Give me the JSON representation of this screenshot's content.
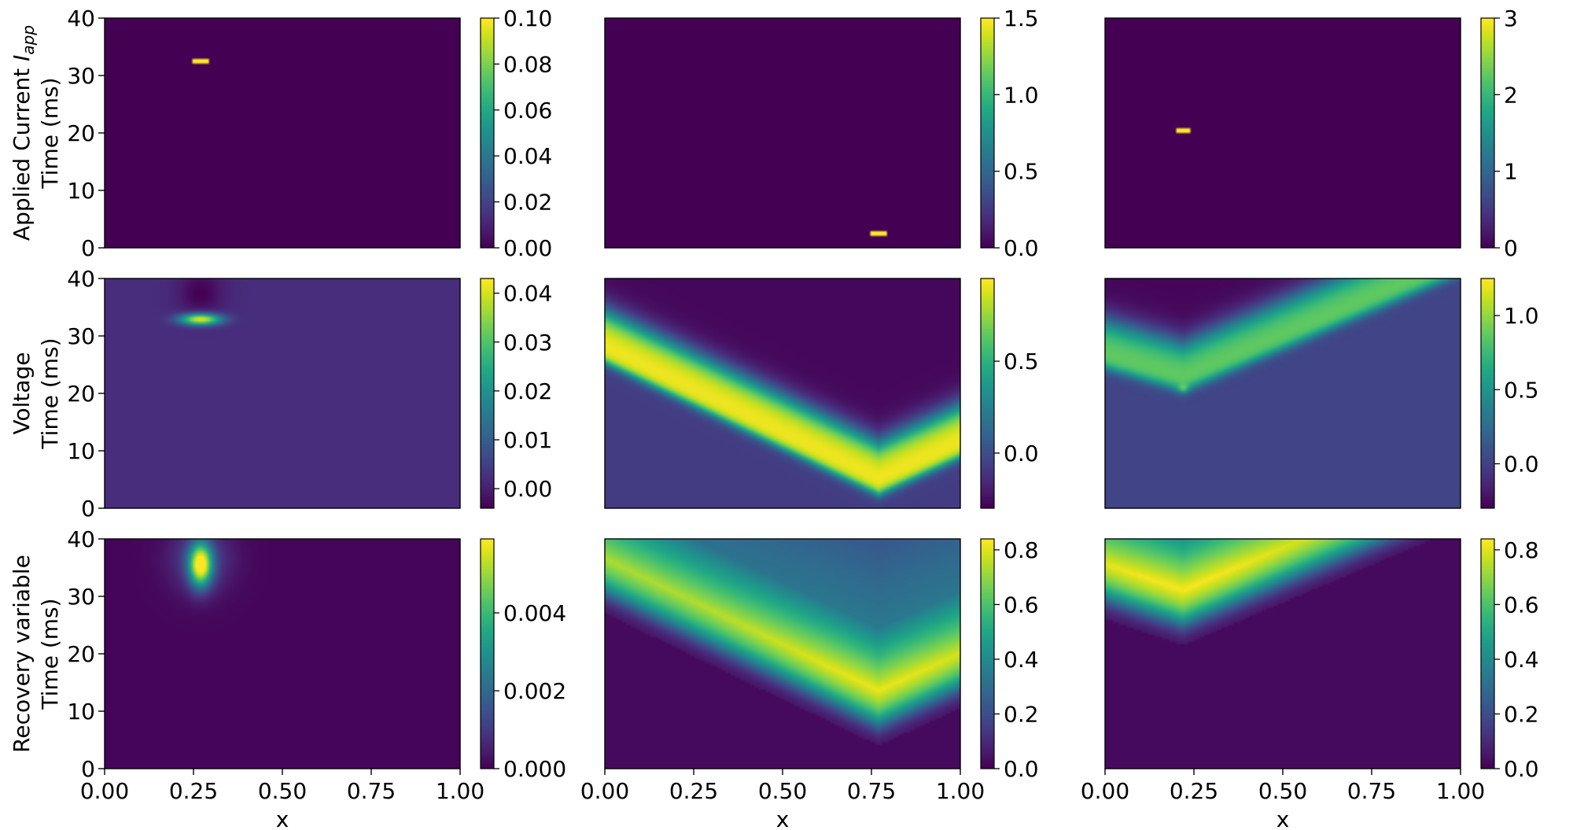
{
  "chart_data": [
    {
      "type": "heatmap",
      "id": "current-1",
      "xlim": [
        0,
        1
      ],
      "ylim": [
        0,
        40
      ],
      "xticks": [],
      "yticks": [
        "0",
        "10",
        "20",
        "30",
        "40"
      ],
      "ylabel_line1": "Applied Current",
      "ylabel_symbol": "I",
      "ylabel_subscript": "app",
      "ylabel_line2": "Time (ms)",
      "xlabel": "",
      "colorbar": {
        "range": [
          0,
          0.1
        ],
        "ticks": [
          0,
          0.02,
          0.04,
          0.06,
          0.08,
          0.1
        ],
        "tick_labels": [
          "0.00",
          "0.02",
          "0.04",
          "0.06",
          "0.08",
          "0.10"
        ]
      },
      "features": [
        {
          "kind": "stimulus",
          "x_range": [
            0.25,
            0.29
          ],
          "t_range": [
            32.0,
            33.0
          ],
          "value": 0.1
        }
      ]
    },
    {
      "type": "heatmap",
      "id": "current-2",
      "xlim": [
        0,
        1
      ],
      "ylim": [
        0,
        40
      ],
      "xticks": [],
      "yticks": [],
      "xlabel": "",
      "colorbar": {
        "range": [
          0,
          1.5
        ],
        "ticks": [
          0,
          0.5,
          1,
          1.5
        ],
        "tick_labels": [
          "0.0",
          "0.5",
          "1.0",
          "1.5"
        ]
      },
      "features": [
        {
          "kind": "stimulus",
          "x_range": [
            0.75,
            0.79
          ],
          "t_range": [
            2.0,
            3.0
          ],
          "value": 1.5
        }
      ]
    },
    {
      "type": "heatmap",
      "id": "current-3",
      "xlim": [
        0,
        1
      ],
      "ylim": [
        0,
        40
      ],
      "xticks": [],
      "yticks": [],
      "xlabel": "",
      "colorbar": {
        "range": [
          0,
          3
        ],
        "ticks": [
          0,
          1,
          2,
          3
        ],
        "tick_labels": [
          "0",
          "1",
          "2",
          "3"
        ]
      },
      "features": [
        {
          "kind": "stimulus",
          "x_range": [
            0.2,
            0.24
          ],
          "t_range": [
            20.0,
            21.0
          ],
          "value": 3
        }
      ]
    },
    {
      "type": "heatmap",
      "id": "voltage-1",
      "xlim": [
        0,
        1
      ],
      "ylim": [
        0,
        40
      ],
      "xticks": [],
      "yticks": [
        "0",
        "10",
        "20",
        "30",
        "40"
      ],
      "ylabel_line1": "Voltage",
      "ylabel_line2": "Time (ms)",
      "xlabel": "",
      "colorbar": {
        "range": [
          -0.004,
          0.043
        ],
        "ticks": [
          0,
          0.01,
          0.02,
          0.03,
          0.04
        ],
        "tick_labels": [
          "0.00",
          "0.01",
          "0.02",
          "0.03",
          "0.04"
        ]
      },
      "background": 0.002,
      "features": [
        {
          "kind": "blob",
          "x": 0.27,
          "t": 32.9,
          "sx": 0.04,
          "st": 0.7,
          "amp": 0.041
        },
        {
          "kind": "blob",
          "x": 0.27,
          "t": 37.5,
          "sx": 0.045,
          "st": 2.8,
          "amp": -0.006
        }
      ]
    },
    {
      "type": "heatmap",
      "id": "voltage-2",
      "xlim": [
        0,
        1
      ],
      "ylim": [
        0,
        40
      ],
      "xticks": [],
      "yticks": [],
      "xlabel": "",
      "colorbar": {
        "range": [
          -0.3,
          0.95
        ],
        "ticks": [
          0,
          0.5
        ],
        "tick_labels": [
          "0.0",
          "0.5"
        ]
      },
      "background": -0.08,
      "ahead_value": -0.08,
      "behind_value": -0.28,
      "peak_value": 0.95,
      "features": [
        {
          "kind": "v-wave",
          "origin_x": 0.77,
          "origin_t": 2.5,
          "arms": [
            {
              "x": 0.0,
              "t": 25.5
            },
            {
              "x": 1.0,
              "t": 9.0
            }
          ],
          "width_t": 8.5
        }
      ]
    },
    {
      "type": "heatmap",
      "id": "voltage-3",
      "xlim": [
        0,
        1
      ],
      "ylim": [
        0,
        40
      ],
      "xticks": [],
      "yticks": [],
      "xlabel": "",
      "colorbar": {
        "range": [
          -0.3,
          1.25
        ],
        "ticks": [
          0,
          0.5,
          1
        ],
        "tick_labels": [
          "0.0",
          "0.5",
          "1.0"
        ]
      },
      "background": 0.01,
      "ahead_value": 0.01,
      "behind_value": -0.28,
      "peak_value": 0.9,
      "features": [
        {
          "kind": "v-wave",
          "origin_x": 0.22,
          "origin_t": 20.5,
          "arms": [
            {
              "x": 0.0,
              "t": 24.5
            },
            {
              "x": 1.0,
              "t": 41.0
            }
          ],
          "width_t": 8.0
        },
        {
          "kind": "blob",
          "x": 0.22,
          "t": 20.8,
          "sx": 0.012,
          "st": 0.45,
          "amp": 0.32
        }
      ]
    },
    {
      "type": "heatmap",
      "id": "recovery-1",
      "xlim": [
        0,
        1
      ],
      "ylim": [
        0,
        40
      ],
      "xticks": [
        "0.00",
        "0.25",
        "0.50",
        "0.75",
        "1.00"
      ],
      "yticks": [
        "0",
        "10",
        "20",
        "30",
        "40"
      ],
      "ylabel_line1": "Recovery variable",
      "ylabel_line2": "Time (ms)",
      "xlabel": "x",
      "colorbar": {
        "range": [
          0,
          0.0059
        ],
        "ticks": [
          0,
          0.002,
          0.004
        ],
        "tick_labels": [
          "0.000",
          "0.002",
          "0.004"
        ]
      },
      "background": 8e-05,
      "features": [
        {
          "kind": "blob",
          "x": 0.27,
          "t": 35.5,
          "sx": 0.022,
          "st": 2.6,
          "amp": 0.0056
        },
        {
          "kind": "blob",
          "x": 0.27,
          "t": 36.5,
          "sx": 0.06,
          "st": 4.0,
          "amp": 0.0012
        }
      ]
    },
    {
      "type": "heatmap",
      "id": "recovery-2",
      "xlim": [
        0,
        1
      ],
      "ylim": [
        0,
        40
      ],
      "xticks": [
        "0.00",
        "0.25",
        "0.50",
        "0.75",
        "1.00"
      ],
      "yticks": [],
      "xlabel": "x",
      "colorbar": {
        "range": [
          0,
          0.84
        ],
        "ticks": [
          0,
          0.2,
          0.4,
          0.6,
          0.8
        ],
        "tick_labels": [
          "0.0",
          "0.2",
          "0.4",
          "0.6",
          "0.8"
        ]
      },
      "background": 0.02,
      "peak_value": 0.82,
      "features": [
        {
          "kind": "v-recovery",
          "origin_x": 0.77,
          "origin_t": 4.0,
          "arms": [
            {
              "x": 0.0,
              "t": 27.0
            },
            {
              "x": 1.0,
              "t": 10.5
            }
          ],
          "peak_offset_t": 9.5,
          "rise_t": 3.5,
          "decay_t": 11.0,
          "far_value": 0.34
        }
      ]
    },
    {
      "type": "heatmap",
      "id": "recovery-3",
      "xlim": [
        0,
        1
      ],
      "ylim": [
        0,
        40
      ],
      "xticks": [
        "0.00",
        "0.25",
        "0.50",
        "0.75",
        "1.00"
      ],
      "yticks": [],
      "xlabel": "x",
      "colorbar": {
        "range": [
          0,
          0.84
        ],
        "ticks": [
          0,
          0.2,
          0.4,
          0.6,
          0.8
        ],
        "tick_labels": [
          "0.0",
          "0.2",
          "0.4",
          "0.6",
          "0.8"
        ]
      },
      "background": 0.02,
      "peak_value": 0.84,
      "features": [
        {
          "kind": "v-recovery",
          "origin_x": 0.22,
          "origin_t": 21.5,
          "arms": [
            {
              "x": 0.0,
              "t": 26.0
            },
            {
              "x": 1.0,
              "t": 42.0
            }
          ],
          "peak_offset_t": 9.5,
          "rise_t": 3.5,
          "decay_t": 11.0,
          "far_value": 0.34
        }
      ]
    }
  ]
}
